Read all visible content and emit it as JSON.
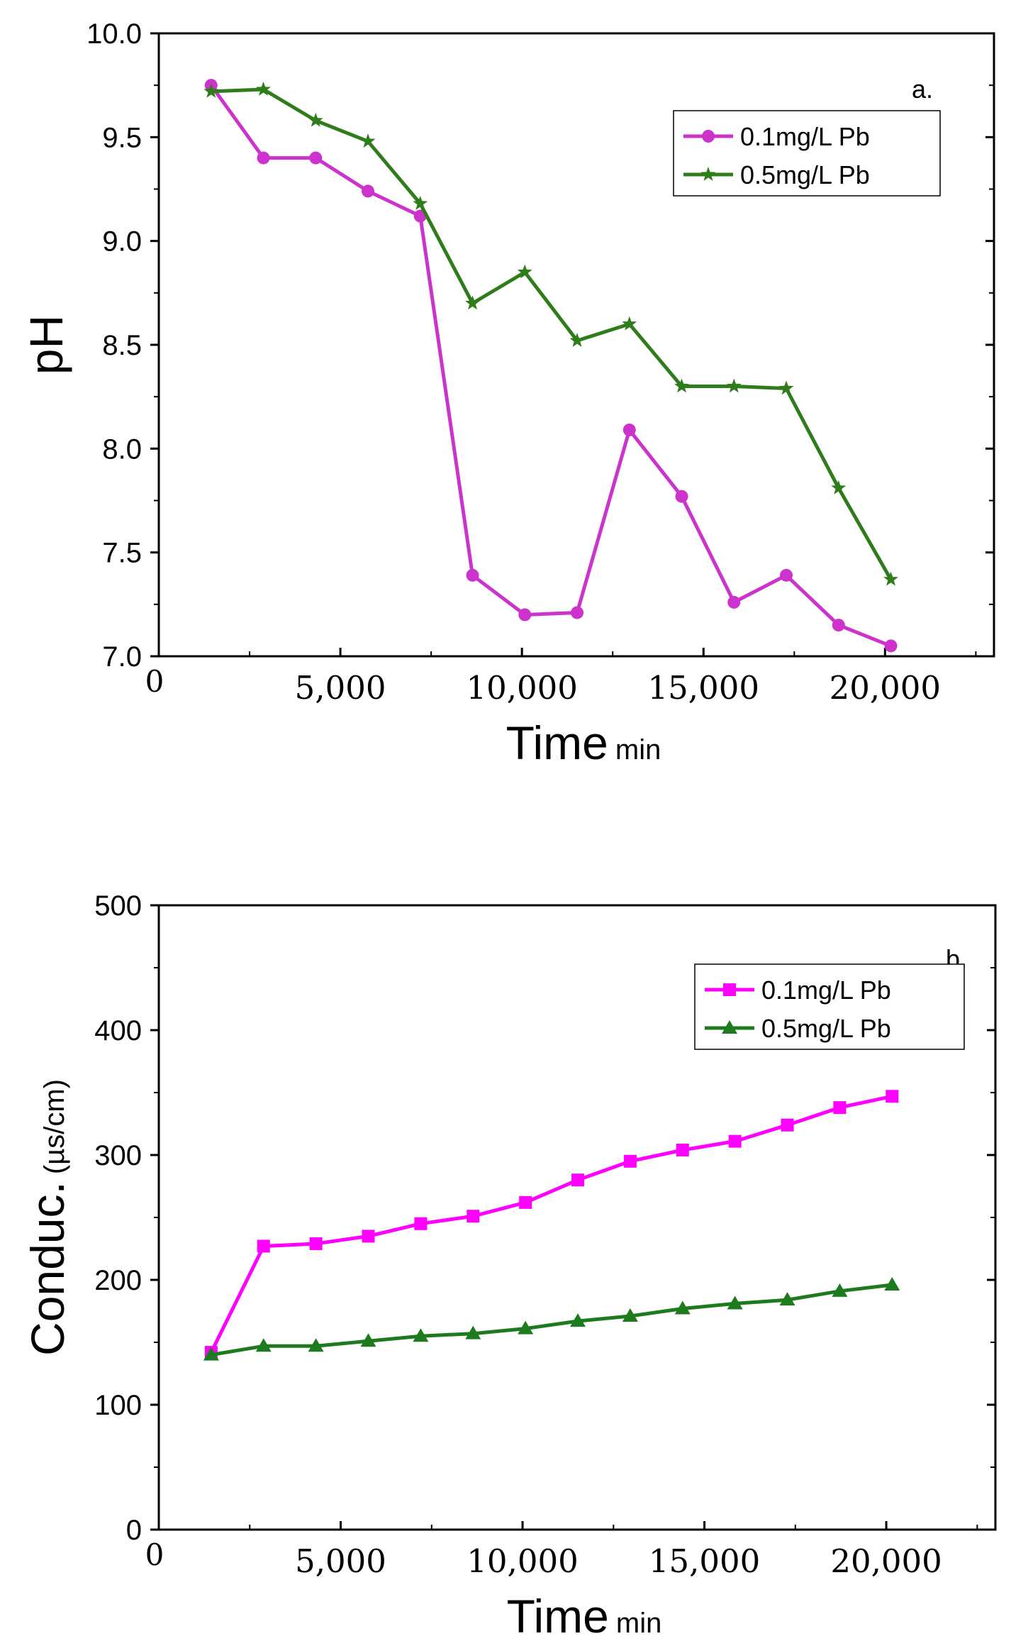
{
  "chart_data": [
    {
      "type": "line",
      "panel_label": "a.",
      "xlabel": "Time",
      "xlabel_unit": "min",
      "ylabel": "pH",
      "origin_label": "0",
      "xlim": [
        0,
        23000
      ],
      "ylim": [
        7.0,
        10.0
      ],
      "x_ticks": [
        5000,
        10000,
        15000,
        20000
      ],
      "x_tick_labels": [
        "5,000",
        "10,000",
        "15,000",
        "20,000"
      ],
      "y_ticks": [
        7.0,
        7.5,
        8.0,
        8.5,
        9.0,
        9.5,
        10.0
      ],
      "y_tick_labels": [
        "7.0",
        "7.5",
        "8.0",
        "8.5",
        "9.0",
        "9.5",
        "10.0"
      ],
      "legend_position": "top-right",
      "x": [
        1440,
        2880,
        4320,
        5760,
        7200,
        8640,
        10080,
        11520,
        12960,
        14400,
        15840,
        17280,
        18720,
        20160
      ],
      "series": [
        {
          "name": "0.1mg/L Pb",
          "color": "#cc33cc",
          "marker": "circle",
          "values": [
            9.75,
            9.4,
            9.4,
            9.24,
            9.12,
            7.39,
            7.2,
            7.21,
            8.09,
            7.77,
            7.26,
            7.39,
            7.15,
            7.05
          ]
        },
        {
          "name": "0.5mg/L Pb",
          "color": "#2e7d1a",
          "marker": "star",
          "values": [
            9.72,
            9.73,
            9.58,
            9.48,
            9.18,
            8.7,
            8.85,
            8.52,
            8.6,
            8.3,
            8.3,
            8.29,
            7.81,
            7.37
          ]
        }
      ]
    },
    {
      "type": "line",
      "panel_label": "b.",
      "xlabel": "Time",
      "xlabel_unit": "min",
      "ylabel": "Conduc.",
      "ylabel_unit": "(µs/cm)",
      "origin_label": "0",
      "xlim": [
        0,
        23000
      ],
      "ylim": [
        0,
        500
      ],
      "x_ticks": [
        5000,
        10000,
        15000,
        20000
      ],
      "x_tick_labels": [
        "5,000",
        "10,000",
        "15,000",
        "20,000"
      ],
      "y_ticks": [
        0,
        100,
        200,
        300,
        400,
        500
      ],
      "y_tick_labels": [
        "0",
        "100",
        "200",
        "300",
        "400",
        "500"
      ],
      "legend_position": "top-right",
      "x": [
        1440,
        2880,
        4320,
        5760,
        7200,
        8640,
        10080,
        11520,
        12960,
        14400,
        15840,
        17280,
        18720,
        20160
      ],
      "series": [
        {
          "name": "0.1mg/L Pb",
          "color": "#ff00ff",
          "marker": "square",
          "values": [
            142,
            227,
            229,
            235,
            245,
            251,
            262,
            280,
            295,
            304,
            311,
            324,
            338,
            347
          ]
        },
        {
          "name": "0.5mg/L Pb",
          "color": "#1e7a1e",
          "marker": "triangle",
          "values": [
            140,
            147,
            147,
            151,
            155,
            157,
            161,
            167,
            171,
            177,
            181,
            184,
            191,
            196
          ]
        }
      ]
    }
  ]
}
